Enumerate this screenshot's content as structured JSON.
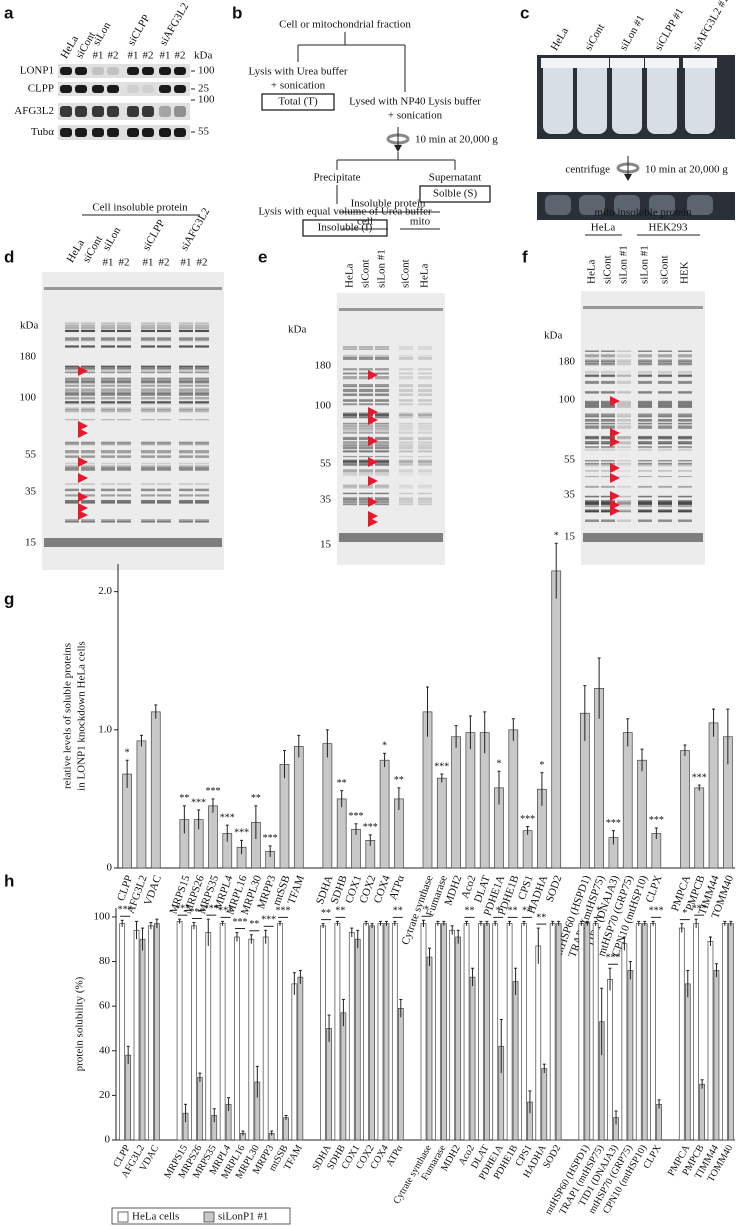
{
  "a": {
    "label": "a",
    "lanes": [
      "HeLa",
      "siCont"
    ],
    "groups": [
      "siLon",
      "siCLPP",
      "siAFG3L2"
    ],
    "sub": [
      "#1",
      "#2"
    ],
    "unit": "kDa",
    "rows": [
      "LONP1",
      "CLPP",
      "AFG3L2",
      "Tubα"
    ],
    "markers": [
      "100",
      "25",
      "100",
      "55"
    ]
  },
  "b": {
    "label": "b",
    "source": "Cell or mitochondrial fraction",
    "total_step": [
      "Lysis with Urea buffer",
      "+ sonication"
    ],
    "total": "Total (T)",
    "np40_step": [
      "Lysed with NP40 Lysis buffer",
      "+ sonication"
    ],
    "spin": "10 min at 20,000 g",
    "precipitate": "Precipitate",
    "supernatant": "Supernatant",
    "soluble": "Solble (S)",
    "insoluble_step": "Lysis with equal volume of Urea buffer",
    "insoluble": "Insoluble (I)"
  },
  "c": {
    "label": "c",
    "lanes": [
      "HeLa",
      "siCont",
      "siLon #1",
      "siCLPP #1",
      "siAFG3L2 #1"
    ],
    "centrifuge": "centrifuge",
    "spin": "10 min at 20,000 g"
  },
  "d": {
    "label": "d",
    "title": "Cell insoluble protein",
    "lanes": [
      "HeLa",
      "siCont"
    ],
    "groups": [
      "siLon",
      "siCLPP",
      "siAFG3L2"
    ],
    "sub": [
      "#1",
      "#2"
    ],
    "unit": "kDa",
    "markers": [
      "180",
      "100",
      "55",
      "35",
      "15"
    ]
  },
  "e": {
    "label": "e",
    "title": "Insoluble protein",
    "fractions": [
      "cell",
      "mito"
    ],
    "lanes": [
      "HeLa",
      "siCont",
      "siLon #1",
      "siCont",
      "HeLa"
    ],
    "unit": "kDa",
    "markers": [
      "180",
      "100",
      "55",
      "35",
      "15"
    ]
  },
  "f": {
    "label": "f",
    "title": "mito insoluble protein",
    "cells": [
      "HeLa",
      "HEK293"
    ],
    "lanes": [
      "HeLa",
      "siCont",
      "siLon #1",
      "siLon #1",
      "siCont",
      "HEK"
    ],
    "unit": "kDa",
    "markers": [
      "180",
      "100",
      "55",
      "35",
      "15"
    ]
  },
  "chart_data": [
    {
      "type": "bar",
      "label": "g",
      "ylabel": [
        "relative levels of soluble proteins",
        "in LONP1 knockdown HeLa cells"
      ],
      "categories": [
        "CLPP",
        "AFG3L2",
        "VDAC",
        null,
        "MRPS15",
        "MRPS26",
        "MRPS35",
        "MRPL4",
        "MRPL16",
        "MRPL30",
        "MRPP3",
        "mtSSB",
        "TFAM",
        null,
        "SDHA",
        "SDHB",
        "COX1",
        "COX2",
        "COX4",
        "ATPα",
        null,
        "Cytrate synthase",
        "Fumarase",
        "MDH2",
        "Aco2",
        "DLAT",
        "PDHE1A",
        "PDHE1B",
        "CPS1",
        "HADHA",
        "SOD2",
        null,
        "mtHSP60 (HSPD1)",
        "TRAP1 (mtHSP75)",
        "TID1 (DNAJA3)",
        "mtHSP70 (GRP75)",
        "CPN10 (mtHSP10)",
        "CLPX",
        null,
        "PMPCA",
        "PMPCB",
        "TIMM44",
        "TOMM40"
      ],
      "values": [
        0.68,
        0.92,
        1.13,
        null,
        0.35,
        0.35,
        0.45,
        0.25,
        0.15,
        0.33,
        0.12,
        0.75,
        0.88,
        null,
        0.9,
        0.5,
        0.28,
        0.2,
        0.78,
        0.5,
        null,
        1.13,
        0.65,
        0.95,
        0.98,
        0.98,
        0.58,
        1.0,
        0.27,
        0.57,
        2.15,
        null,
        1.12,
        1.3,
        0.22,
        0.98,
        0.78,
        0.25,
        null,
        0.85,
        0.58,
        1.05,
        0.95
      ],
      "errors": [
        0.1,
        0.04,
        0.05,
        null,
        0.1,
        0.07,
        0.05,
        0.06,
        0.05,
        0.12,
        0.04,
        0.1,
        0.08,
        null,
        0.1,
        0.06,
        0.04,
        0.04,
        0.05,
        0.08,
        null,
        0.18,
        0.03,
        0.08,
        0.12,
        0.15,
        0.12,
        0.08,
        0.03,
        0.12,
        0.2,
        null,
        0.2,
        0.22,
        0.05,
        0.1,
        0.08,
        0.04,
        null,
        0.04,
        0.02,
        0.1,
        0.2
      ],
      "significance": [
        "*",
        null,
        null,
        null,
        "**",
        "***",
        "***",
        "***",
        "***",
        "**",
        "***",
        null,
        null,
        null,
        null,
        "**",
        "***",
        "***",
        "*",
        "**",
        null,
        null,
        "***",
        null,
        null,
        null,
        "*",
        null,
        "***",
        "*",
        "*",
        null,
        null,
        null,
        "***",
        null,
        null,
        "***",
        null,
        null,
        "***",
        null,
        null
      ],
      "color": "#c8c8c8",
      "ylim": [
        0,
        2.2
      ],
      "yticks": [
        0,
        {
          "value": 1,
          "label": "1.0"
        },
        {
          "value": 2,
          "label": "2.0"
        }
      ]
    },
    {
      "type": "grouped_bar",
      "label": "h",
      "ylabel": "protein solubility (%)",
      "categories": [
        "CLPP",
        "AFG3L2",
        "VDAC",
        null,
        "MRPS15",
        "MRPS26",
        "MRPS35",
        "MRPL4",
        "MRPL16",
        "MRPL30",
        "MRPP3",
        "mtSSB",
        "TFAM",
        null,
        "SDHA",
        "SDHB",
        "COX1",
        "COX2",
        "COX4",
        "ATPα",
        null,
        "Cytrate synthase",
        "Fumarase",
        "MDH2",
        "Aco2",
        "DLAT",
        "PDHE1A",
        "PDHE1B",
        "CPS1",
        "HADHA",
        "SOD2",
        null,
        "mtHSP60 (HSPD1)",
        "TRAP1 (mtHSP75)",
        "TID1 (DNAJA3)",
        "mtHSP70 (GRP75)",
        "CPN10 (mtHSP10)",
        "CLPX",
        null,
        "PMPCA",
        "PMPCB",
        "TIMM44",
        "TOMM40"
      ],
      "series": [
        {
          "name": "HeLa cells",
          "color": "#ffffff",
          "values": [
            97,
            94,
            96,
            null,
            98,
            96,
            93,
            97,
            91,
            90,
            91,
            97,
            70,
            null,
            96,
            97,
            93,
            97,
            97,
            97,
            null,
            97,
            97,
            94,
            97,
            97,
            97,
            97,
            97,
            87,
            97,
            null,
            97,
            97,
            72,
            88,
            97,
            97,
            null,
            95,
            97,
            89,
            97
          ],
          "errors": [
            1.5,
            4,
            1.5,
            null,
            1,
            1.5,
            6,
            1,
            2,
            2,
            3,
            1,
            5,
            null,
            1,
            1,
            2,
            1,
            1,
            1,
            null,
            1.5,
            1,
            2,
            1,
            1,
            1,
            1,
            1,
            8,
            1,
            null,
            1,
            1,
            5,
            3,
            1,
            1,
            null,
            2,
            2,
            2,
            1
          ]
        },
        {
          "name": "siLonP1 #1",
          "color": "#c8c8c8",
          "values": [
            38,
            90,
            97,
            null,
            12,
            28,
            11,
            16,
            3,
            26,
            3,
            10,
            73,
            null,
            50,
            57,
            90,
            96,
            97,
            59,
            null,
            82,
            97,
            91,
            73,
            97,
            42,
            71,
            17,
            32,
            97,
            null,
            97,
            53,
            10,
            76,
            97,
            16,
            null,
            70,
            25,
            76,
            97
          ],
          "errors": [
            4,
            5,
            2,
            null,
            4,
            2,
            3,
            3,
            1,
            7,
            1,
            1,
            3,
            null,
            6,
            6,
            4,
            1,
            1,
            4,
            null,
            4,
            1,
            3,
            4,
            1,
            12,
            6,
            5,
            2,
            1,
            null,
            1,
            15,
            3,
            4,
            1,
            2,
            null,
            6,
            2,
            3,
            1
          ]
        }
      ],
      "significance": [
        "***",
        null,
        null,
        null,
        "***",
        "***",
        "***",
        "***",
        "***",
        "**",
        "***",
        "***",
        null,
        null,
        "**",
        "**",
        null,
        null,
        null,
        "**",
        null,
        "*",
        null,
        null,
        "**",
        null,
        "*",
        "**",
        "**",
        "**",
        null,
        null,
        null,
        "*",
        "***",
        null,
        null,
        "***",
        null,
        "*",
        "***",
        null,
        null
      ],
      "ylim": [
        0,
        104
      ],
      "yticks": [
        0,
        20,
        40,
        60,
        80,
        100
      ],
      "legend": "bottom-left"
    }
  ]
}
